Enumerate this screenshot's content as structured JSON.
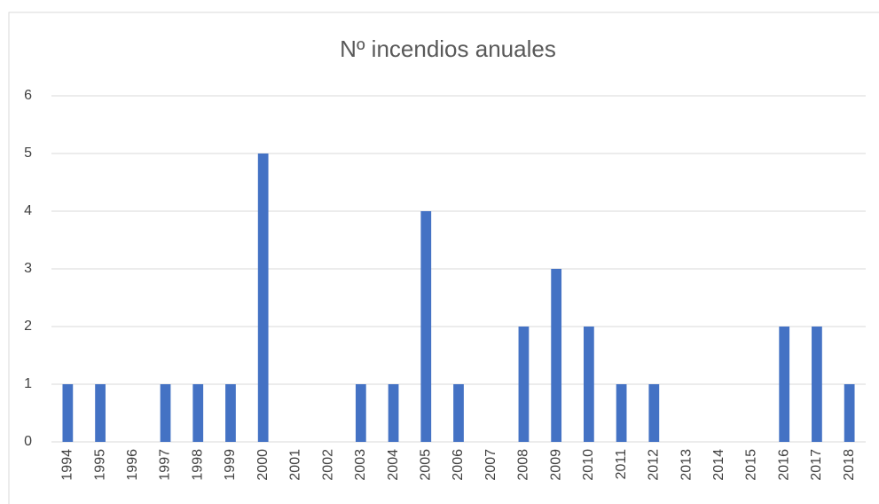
{
  "chart_data": {
    "type": "bar",
    "title": "Nº incendios anuales",
    "categories": [
      "1994",
      "1995",
      "1996",
      "1997",
      "1998",
      "1999",
      "2000",
      "2001",
      "2002",
      "2003",
      "2004",
      "2005",
      "2006",
      "2007",
      "2008",
      "2009",
      "2010",
      "2011",
      "2012",
      "2013",
      "2014",
      "2015",
      "2016",
      "2017",
      "2018"
    ],
    "values": [
      1,
      1,
      0,
      1,
      1,
      1,
      5,
      0,
      0,
      1,
      1,
      4,
      1,
      0,
      2,
      3,
      2,
      1,
      1,
      0,
      0,
      0,
      2,
      2,
      1
    ],
    "color": "#4472c4",
    "ylim": [
      0,
      6
    ],
    "yticks": [
      0,
      1,
      2,
      3,
      4,
      5,
      6
    ],
    "grid": true
  }
}
